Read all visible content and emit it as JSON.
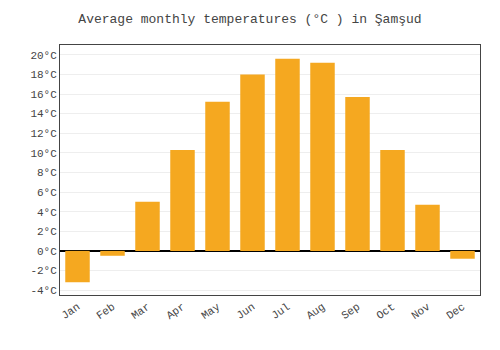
{
  "chart_data": {
    "type": "bar",
    "title": "Average monthly temperatures (°C ) in Şamşud",
    "categories": [
      "Jan",
      "Feb",
      "Mar",
      "Apr",
      "May",
      "Jun",
      "Jul",
      "Aug",
      "Sep",
      "Oct",
      "Nov",
      "Dec"
    ],
    "values": [
      -3.2,
      -0.5,
      5.0,
      10.3,
      15.2,
      18.0,
      19.6,
      19.2,
      15.7,
      10.3,
      4.7,
      -0.8
    ],
    "color": "#F5A820",
    "ylim": [
      -4.5,
      21
    ],
    "yticks": [
      {
        "value": -4,
        "label": "-4°C"
      },
      {
        "value": -2,
        "label": "-2°C"
      },
      {
        "value": 0,
        "label": "0°C"
      },
      {
        "value": 2,
        "label": "2°C"
      },
      {
        "value": 4,
        "label": "4°C"
      },
      {
        "value": 6,
        "label": "6°C"
      },
      {
        "value": 8,
        "label": "8°C"
      },
      {
        "value": 10,
        "label": "10°C"
      },
      {
        "value": 12,
        "label": "12°C"
      },
      {
        "value": 14,
        "label": "14°C"
      },
      {
        "value": 16,
        "label": "16°C"
      },
      {
        "value": 18,
        "label": "18°C"
      },
      {
        "value": 20,
        "label": "20°C"
      }
    ],
    "grid": true
  }
}
